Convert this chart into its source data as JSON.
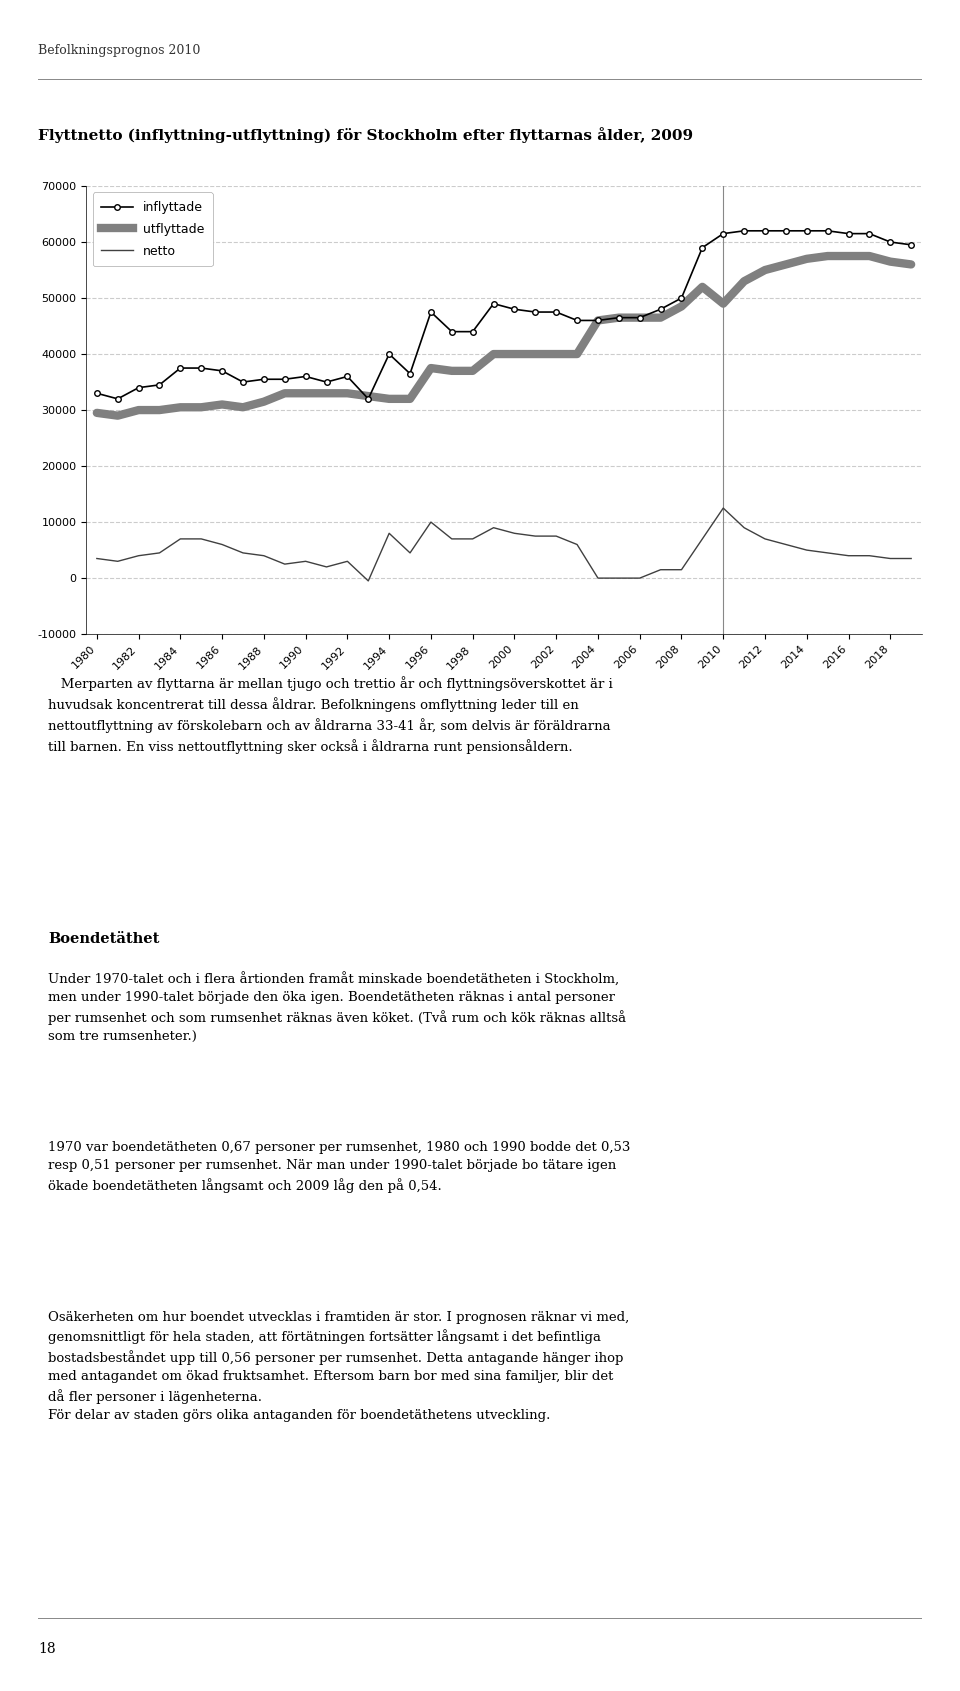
{
  "title": "Flyttnetto (inflyttning-utflyttning) för Stockholm efter flyttarnas ålder, 2009",
  "header": "Befolkningsprognos 2010",
  "years": [
    1980,
    1981,
    1982,
    1983,
    1984,
    1985,
    1986,
    1987,
    1988,
    1989,
    1990,
    1991,
    1992,
    1993,
    1994,
    1995,
    1996,
    1997,
    1998,
    1999,
    2000,
    2001,
    2002,
    2003,
    2004,
    2005,
    2006,
    2007,
    2008,
    2009,
    2010,
    2011,
    2012,
    2013,
    2014,
    2015,
    2016,
    2017,
    2018,
    2019
  ],
  "inflyttade": [
    33000,
    32000,
    34000,
    34500,
    37500,
    37500,
    37000,
    35000,
    35500,
    35500,
    36000,
    35000,
    36000,
    32000,
    40000,
    36500,
    47500,
    44000,
    44000,
    49000,
    48000,
    47500,
    47500,
    46000,
    46000,
    46500,
    46500,
    48000,
    50000,
    59000,
    61500,
    62000,
    62000,
    62000,
    62000,
    62000,
    61500,
    61500,
    60000,
    59500
  ],
  "utflyttade": [
    29500,
    29000,
    30000,
    30000,
    30500,
    30500,
    31000,
    30500,
    31500,
    33000,
    33000,
    33000,
    33000,
    32500,
    32000,
    32000,
    37500,
    37000,
    37000,
    40000,
    40000,
    40000,
    40000,
    40000,
    46000,
    46500,
    46500,
    46500,
    48500,
    52000,
    49000,
    53000,
    55000,
    56000,
    57000,
    57500,
    57500,
    57500,
    56500,
    56000
  ],
  "netto": [
    3500,
    3000,
    4000,
    4500,
    7000,
    7000,
    6000,
    4500,
    4000,
    2500,
    3000,
    2000,
    3000,
    -500,
    8000,
    4500,
    10000,
    7000,
    7000,
    9000,
    8000,
    7500,
    7500,
    6000,
    0,
    0,
    0,
    1500,
    1500,
    7000,
    12500,
    9000,
    7000,
    6000,
    5000,
    4500,
    4000,
    4000,
    3500,
    3500
  ],
  "ylim": [
    -10000,
    70000
  ],
  "yticks": [
    -10000,
    0,
    10000,
    20000,
    30000,
    40000,
    50000,
    60000,
    70000
  ],
  "forecast_year": 2010,
  "legend_labels": [
    "inflyttade",
    "utflyttade",
    "netto"
  ],
  "inflyttade_color": "#000000",
  "utflyttade_color": "#808080",
  "netto_color": "#404040",
  "background_color": "#ffffff",
  "grid_color": "#cccccc",
  "paragraph1": "Merparten av flyttarna är mellan tjugo och trettio år och flyttningsöverskottet är i huvudsak koncentrerat till dessa åldrar. Befolkningens omflyttning leder till en nettoutflyttning av förskolebarn och av åldrarna 33-41 år, som delvis är föräldrarna till barnen. En viss nettoutflyttning sker också i åldrarna runt pensionsåldern.",
  "heading2": "Boendetäthet",
  "paragraph2": "Under 1970-talet och i flera årtionden framåt minskade boendetätheten i Stockholm, men under 1990-talet började den öka igen. Boendetätheten räknas i antal personer per rumsenhet och som rumsenhet räknas även köket. (Två rum och kök räknas alltså som tre rumsenheter.)",
  "paragraph3": "1970 var boendetätheten 0,67 personer per rumsenhet, 1980 och 1990 bodde det 0,53 resp 0,51 personer per rumsenhet. När man under 1990-talet började bo tätare igen ökade boendetätheten långsamt och 2009 låg den på 0,54.",
  "paragraph4": "Osäkerheten om hur boendet utvecklas i framtiden är stor. I prognosen räknar vi med, genomsnittligt för hela staden, att förtätningen fortsätter långsamt i det befintliga bostadsbeståndet upp till 0,56 personer per rumsenhet. Detta antagande hänger ihop med antagandet om ökad fruktsamhet. Eftersom barn bor med sina familjer, blir det då fler personer i lägenheterna.\nFör delar av staden görs olika antaganden för boendetäthetens utveckling.",
  "page_number": "18"
}
